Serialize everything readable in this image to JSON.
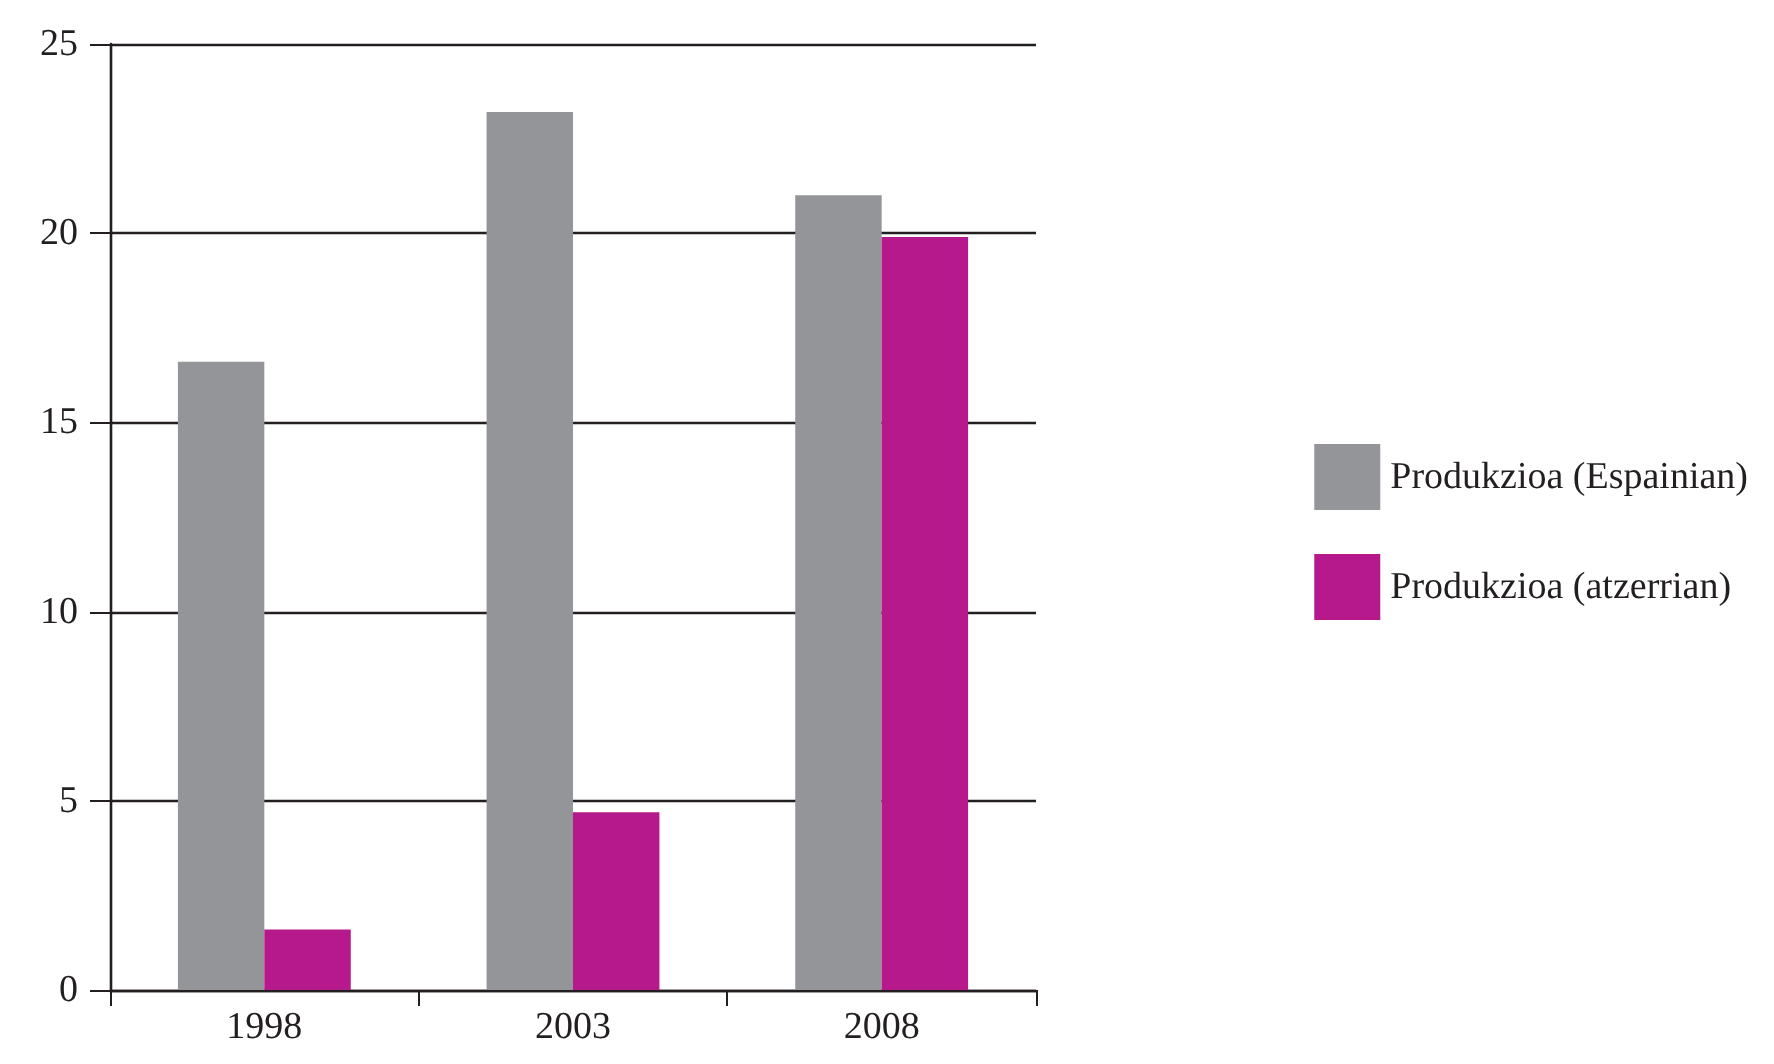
{
  "chart_data": {
    "type": "bar",
    "categories": [
      "1998",
      "2003",
      "2008"
    ],
    "series": [
      {
        "name": "Produkzioa (Espainian)",
        "color": "#939598",
        "values": [
          16.6,
          23.2,
          21.0
        ]
      },
      {
        "name": "Produkzioa (atzerrian)",
        "color": "#b5198b",
        "values": [
          1.6,
          4.7,
          19.9
        ]
      }
    ],
    "ylim": [
      0,
      25
    ],
    "yticks": [
      0,
      5,
      10,
      15,
      20,
      25
    ],
    "grid": "y",
    "legend": "right"
  }
}
